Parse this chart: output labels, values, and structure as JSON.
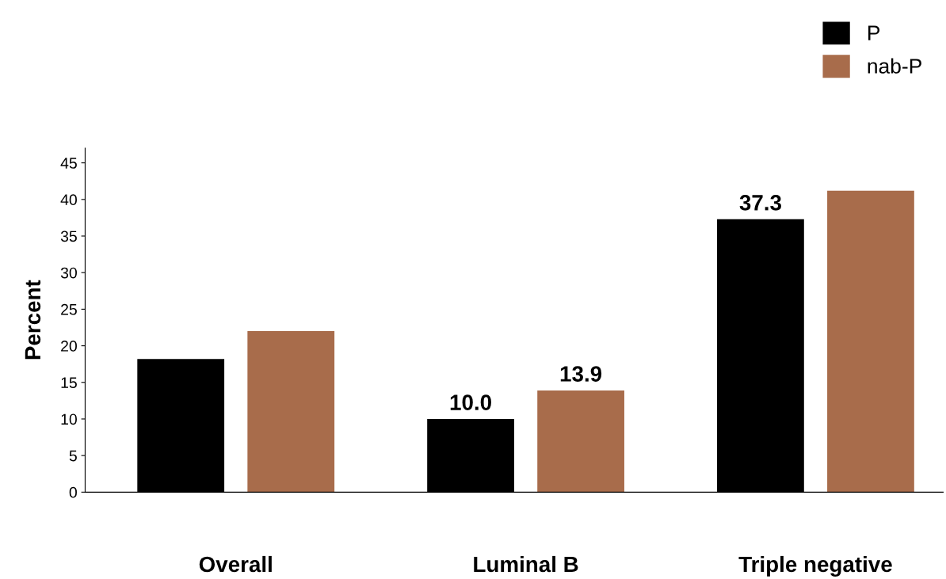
{
  "chart_data": {
    "type": "bar",
    "ylabel": "Percent",
    "categories": [
      "Overall",
      "Luminal B",
      "Triple negative"
    ],
    "series": [
      {
        "name": "P",
        "color": "#000000",
        "values": [
          18.2,
          10.0,
          37.3
        ],
        "value_labels": [
          null,
          "10.0",
          "37.3"
        ]
      },
      {
        "name": "nab-P",
        "color": "#a86c4b",
        "values": [
          22.0,
          13.9,
          41.2
        ],
        "value_labels": [
          null,
          "13.9",
          null
        ]
      }
    ],
    "ylim": [
      0,
      47
    ],
    "yticks": [
      0,
      5,
      10,
      15,
      20,
      25,
      30,
      35,
      40,
      45
    ],
    "grid": false,
    "legend": "top right"
  }
}
